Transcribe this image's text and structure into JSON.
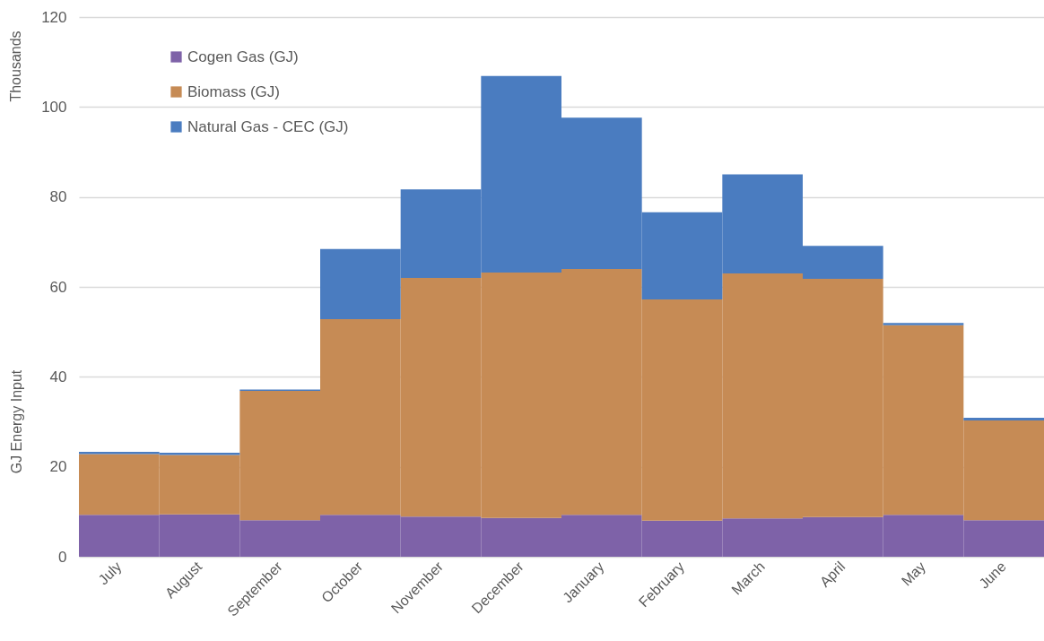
{
  "chart_data": {
    "type": "bar",
    "ylabel": "GJ Energy Input",
    "annotations": [
      "Thousands"
    ],
    "categories": [
      "July",
      "August",
      "September",
      "October",
      "November",
      "December",
      "January",
      "February",
      "March",
      "April",
      "May",
      "June"
    ],
    "series": [
      {
        "name": "Cogen Gas (GJ)",
        "color": "#7e62a8",
        "values": [
          9.3,
          9.4,
          8.1,
          9.3,
          8.9,
          8.6,
          9.3,
          8.0,
          8.5,
          8.8,
          9.3,
          8.1
        ]
      },
      {
        "name": "Biomass (GJ)",
        "color": "#c68b55",
        "values": [
          13.5,
          13.2,
          28.8,
          43.5,
          53.1,
          54.6,
          54.7,
          49.2,
          54.5,
          53.0,
          42.2,
          22.2
        ]
      },
      {
        "name": "Natural Gas - CEC (GJ)",
        "color": "#4a7cc0",
        "values": [
          0.5,
          0.5,
          0.3,
          15.6,
          19.7,
          43.7,
          33.6,
          19.4,
          22.0,
          7.3,
          0.5,
          0.6
        ]
      }
    ],
    "stacked": true,
    "ylim": [
      0,
      120
    ],
    "yticks": [
      0,
      20,
      40,
      60,
      80,
      100,
      120
    ],
    "grid": "y",
    "legend": "top left"
  }
}
